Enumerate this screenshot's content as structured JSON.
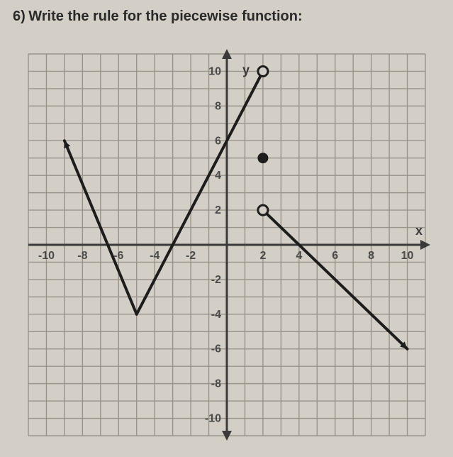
{
  "question": {
    "number": "6)",
    "text": "Write the rule for the piecewise function:"
  },
  "chart": {
    "type": "piecewise-line",
    "grid_color": "#9a938a",
    "axis_color": "#3a3a3a",
    "background_color": "#d4cfc6",
    "stroke_color": "#1d1d1d",
    "stroke_width": 4,
    "xlim": [
      -11,
      11
    ],
    "ylim": [
      -11,
      11
    ],
    "xlabel": "x",
    "ylabel": "y",
    "x_ticks": [
      -10,
      -8,
      -6,
      -4,
      -2,
      2,
      4,
      6,
      8,
      10
    ],
    "y_ticks": [
      -10,
      -8,
      -6,
      -4,
      -2,
      2,
      4,
      6,
      8,
      10
    ],
    "tick_color": "#4a4a4a",
    "tick_fontsize": 16,
    "label_fontsize": 18,
    "segments": [
      {
        "from": [
          -9,
          6
        ],
        "to": [
          -5,
          -4
        ],
        "start_arrow": true,
        "end_arrow": false
      },
      {
        "from": [
          -5,
          -4
        ],
        "to": [
          2,
          10
        ],
        "start_arrow": false,
        "end_endpoint": "open"
      },
      {
        "from": [
          2,
          2
        ],
        "to": [
          10,
          -6
        ],
        "start_endpoint": "open",
        "end_arrow": true
      }
    ],
    "points": [
      {
        "x": 2,
        "y": 10,
        "style": "open",
        "radius": 7
      },
      {
        "x": 2,
        "y": 5,
        "style": "closed",
        "radius": 7
      },
      {
        "x": 2,
        "y": 2,
        "style": "open",
        "radius": 7
      }
    ]
  }
}
